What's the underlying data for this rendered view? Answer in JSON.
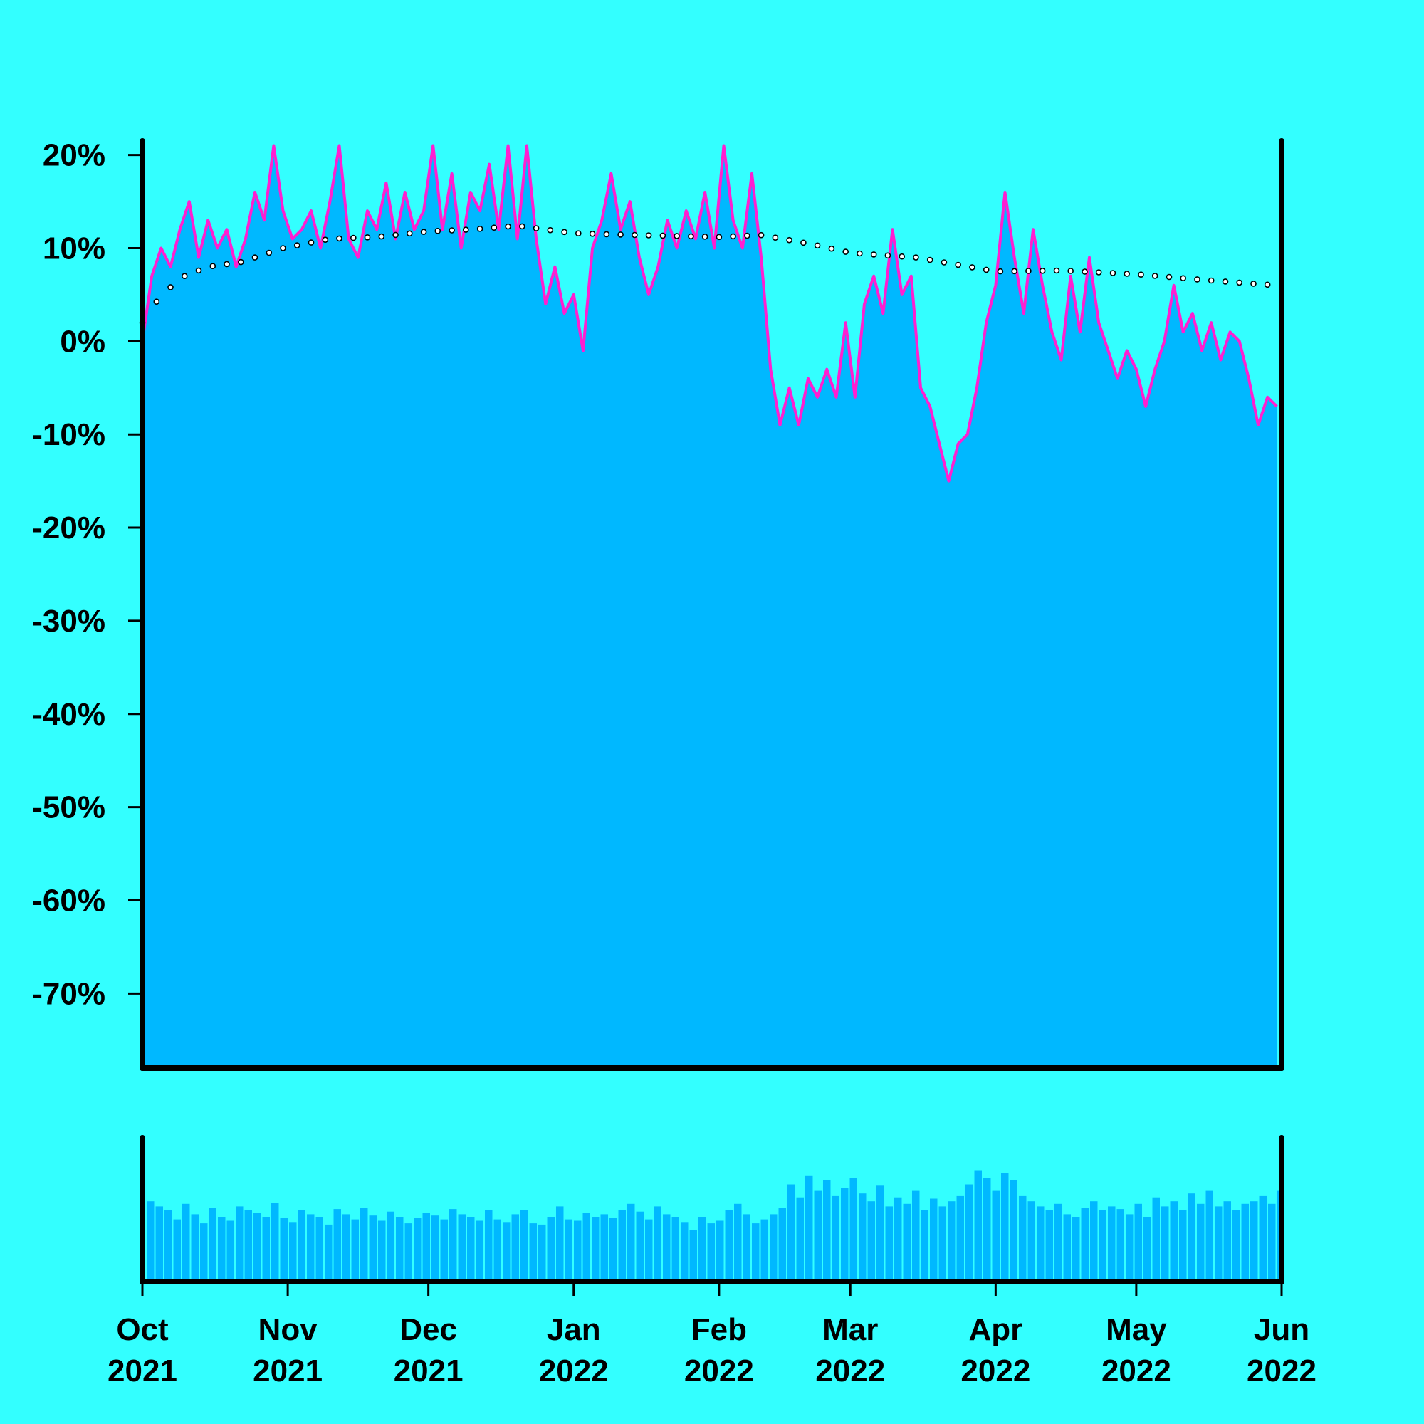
{
  "colors": {
    "background": "#33ffff",
    "area_fill": "#00b8ff",
    "line": "#ff1fd0",
    "trend_marker": "#000000",
    "axis": "#000000"
  },
  "chart_data": [
    {
      "type": "area",
      "title": "",
      "xlabel": "",
      "ylabel": "",
      "x_range": [
        "2021-10-01",
        "2022-06-01"
      ],
      "ylim": [
        -78,
        21.5
      ],
      "y_ticks": [
        {
          "value": 20,
          "label": "20%"
        },
        {
          "value": 10,
          "label": "10%"
        },
        {
          "value": 0,
          "label": "0%"
        },
        {
          "value": -10,
          "label": "-10%"
        },
        {
          "value": -20,
          "label": "-20%"
        },
        {
          "value": -30,
          "label": "-30%"
        },
        {
          "value": -40,
          "label": "-40%"
        },
        {
          "value": -50,
          "label": "-50%"
        },
        {
          "value": -60,
          "label": "-60%"
        },
        {
          "value": -70,
          "label": "-70%"
        }
      ],
      "x_ticks": [
        {
          "date": "2021-10-01",
          "label_top": "Oct",
          "label_bottom": "2021"
        },
        {
          "date": "2021-11-01",
          "label_top": "Nov",
          "label_bottom": "2021"
        },
        {
          "date": "2021-12-01",
          "label_top": "Dec",
          "label_bottom": "2021"
        },
        {
          "date": "2022-01-01",
          "label_top": "Jan",
          "label_bottom": "2022"
        },
        {
          "date": "2022-02-01",
          "label_top": "Feb",
          "label_bottom": "2022"
        },
        {
          "date": "2022-03-01",
          "label_top": "Mar",
          "label_bottom": "2022"
        },
        {
          "date": "2022-04-01",
          "label_top": "Apr",
          "label_bottom": "2022"
        },
        {
          "date": "2022-05-01",
          "label_top": "May",
          "label_bottom": "2022"
        },
        {
          "date": "2022-06-01",
          "label_top": "Jun",
          "label_bottom": "2022"
        }
      ],
      "grid": false,
      "legend": "none",
      "series": [
        {
          "kind": "area-line",
          "points": [
            [
              "2021-10-01",
              0
            ],
            [
              "2021-10-03",
              7
            ],
            [
              "2021-10-05",
              10
            ],
            [
              "2021-10-07",
              8
            ],
            [
              "2021-10-09",
              12
            ],
            [
              "2021-10-11",
              15
            ],
            [
              "2021-10-13",
              9
            ],
            [
              "2021-10-15",
              13
            ],
            [
              "2021-10-17",
              10
            ],
            [
              "2021-10-19",
              12
            ],
            [
              "2021-10-21",
              8
            ],
            [
              "2021-10-23",
              11
            ],
            [
              "2021-10-25",
              16
            ],
            [
              "2021-10-27",
              13
            ],
            [
              "2021-10-29",
              21
            ],
            [
              "2021-10-31",
              14
            ],
            [
              "2021-11-02",
              11
            ],
            [
              "2021-11-04",
              12
            ],
            [
              "2021-11-06",
              14
            ],
            [
              "2021-11-08",
              10
            ],
            [
              "2021-11-10",
              15
            ],
            [
              "2021-11-12",
              21
            ],
            [
              "2021-11-14",
              11
            ],
            [
              "2021-11-16",
              9
            ],
            [
              "2021-11-18",
              14
            ],
            [
              "2021-11-20",
              12
            ],
            [
              "2021-11-22",
              17
            ],
            [
              "2021-11-24",
              11
            ],
            [
              "2021-11-26",
              16
            ],
            [
              "2021-11-28",
              12
            ],
            [
              "2021-11-30",
              14
            ],
            [
              "2021-12-02",
              21
            ],
            [
              "2021-12-04",
              12
            ],
            [
              "2021-12-06",
              18
            ],
            [
              "2021-12-08",
              10
            ],
            [
              "2021-12-10",
              16
            ],
            [
              "2021-12-12",
              14
            ],
            [
              "2021-12-14",
              19
            ],
            [
              "2021-12-16",
              12
            ],
            [
              "2021-12-18",
              21
            ],
            [
              "2021-12-20",
              11
            ],
            [
              "2021-12-22",
              21
            ],
            [
              "2021-12-24",
              11
            ],
            [
              "2021-12-26",
              4
            ],
            [
              "2021-12-28",
              8
            ],
            [
              "2021-12-30",
              3
            ],
            [
              "2022-01-01",
              5
            ],
            [
              "2022-01-03",
              -1
            ],
            [
              "2022-01-05",
              10
            ],
            [
              "2022-01-07",
              13
            ],
            [
              "2022-01-09",
              18
            ],
            [
              "2022-01-11",
              12
            ],
            [
              "2022-01-13",
              15
            ],
            [
              "2022-01-15",
              9
            ],
            [
              "2022-01-17",
              5
            ],
            [
              "2022-01-19",
              8
            ],
            [
              "2022-01-21",
              13
            ],
            [
              "2022-01-23",
              10
            ],
            [
              "2022-01-25",
              14
            ],
            [
              "2022-01-27",
              11
            ],
            [
              "2022-01-29",
              16
            ],
            [
              "2022-01-31",
              10
            ],
            [
              "2022-02-02",
              21
            ],
            [
              "2022-02-04",
              13
            ],
            [
              "2022-02-06",
              10
            ],
            [
              "2022-02-08",
              18
            ],
            [
              "2022-02-10",
              9
            ],
            [
              "2022-02-12",
              -3
            ],
            [
              "2022-02-14",
              -9
            ],
            [
              "2022-02-16",
              -5
            ],
            [
              "2022-02-18",
              -9
            ],
            [
              "2022-02-20",
              -4
            ],
            [
              "2022-02-22",
              -6
            ],
            [
              "2022-02-24",
              -3
            ],
            [
              "2022-02-26",
              -6
            ],
            [
              "2022-02-28",
              2
            ],
            [
              "2022-03-02",
              -6
            ],
            [
              "2022-03-04",
              4
            ],
            [
              "2022-03-06",
              7
            ],
            [
              "2022-03-08",
              3
            ],
            [
              "2022-03-10",
              12
            ],
            [
              "2022-03-12",
              5
            ],
            [
              "2022-03-14",
              7
            ],
            [
              "2022-03-16",
              -5
            ],
            [
              "2022-03-18",
              -7
            ],
            [
              "2022-03-20",
              -11
            ],
            [
              "2022-03-22",
              -15
            ],
            [
              "2022-03-24",
              -11
            ],
            [
              "2022-03-26",
              -10
            ],
            [
              "2022-03-28",
              -5
            ],
            [
              "2022-03-30",
              2
            ],
            [
              "2022-04-01",
              6
            ],
            [
              "2022-04-03",
              16
            ],
            [
              "2022-04-05",
              9
            ],
            [
              "2022-04-07",
              3
            ],
            [
              "2022-04-09",
              12
            ],
            [
              "2022-04-11",
              6
            ],
            [
              "2022-04-13",
              1
            ],
            [
              "2022-04-15",
              -2
            ],
            [
              "2022-04-17",
              7
            ],
            [
              "2022-04-19",
              1
            ],
            [
              "2022-04-21",
              9
            ],
            [
              "2022-04-23",
              2
            ],
            [
              "2022-04-25",
              -1
            ],
            [
              "2022-04-27",
              -4
            ],
            [
              "2022-04-29",
              -1
            ],
            [
              "2022-05-01",
              -3
            ],
            [
              "2022-05-03",
              -7
            ],
            [
              "2022-05-05",
              -3
            ],
            [
              "2022-05-07",
              0
            ],
            [
              "2022-05-09",
              6
            ],
            [
              "2022-05-11",
              1
            ],
            [
              "2022-05-13",
              3
            ],
            [
              "2022-05-15",
              -1
            ],
            [
              "2022-05-17",
              2
            ],
            [
              "2022-05-19",
              -2
            ],
            [
              "2022-05-21",
              1
            ],
            [
              "2022-05-23",
              0
            ],
            [
              "2022-05-25",
              -4
            ],
            [
              "2022-05-27",
              -9
            ],
            [
              "2022-05-29",
              -6
            ],
            [
              "2022-05-31",
              -7
            ]
          ]
        },
        {
          "kind": "trend-dotted",
          "points": [
            [
              "2021-10-01",
              2
            ],
            [
              "2021-10-05",
              5
            ],
            [
              "2021-10-10",
              7
            ],
            [
              "2021-10-15",
              8
            ],
            [
              "2021-10-22",
              8.5
            ],
            [
              "2021-10-31",
              10
            ],
            [
              "2021-11-10",
              11
            ],
            [
              "2021-11-20",
              11.2
            ],
            [
              "2021-12-01",
              11.8
            ],
            [
              "2021-12-10",
              12
            ],
            [
              "2021-12-20",
              12.4
            ],
            [
              "2022-01-01",
              11.6
            ],
            [
              "2022-01-15",
              11.4
            ],
            [
              "2022-02-01",
              11.2
            ],
            [
              "2022-02-10",
              11.4
            ],
            [
              "2022-02-20",
              10.5
            ],
            [
              "2022-03-01",
              9.5
            ],
            [
              "2022-03-15",
              9
            ],
            [
              "2022-04-01",
              7.5
            ],
            [
              "2022-04-15",
              7.6
            ],
            [
              "2022-05-01",
              7.2
            ],
            [
              "2022-05-15",
              6.6
            ],
            [
              "2022-05-31",
              6
            ]
          ]
        }
      ]
    },
    {
      "type": "bar",
      "title": "",
      "xlabel": "",
      "ylabel": "",
      "x_range": [
        "2021-10-01",
        "2022-06-01"
      ],
      "ylim": [
        0,
        1
      ],
      "values": [
        0.62,
        0.58,
        0.55,
        0.48,
        0.6,
        0.52,
        0.45,
        0.57,
        0.5,
        0.47,
        0.58,
        0.55,
        0.53,
        0.5,
        0.61,
        0.49,
        0.46,
        0.55,
        0.52,
        0.5,
        0.44,
        0.56,
        0.52,
        0.48,
        0.57,
        0.51,
        0.47,
        0.54,
        0.5,
        0.45,
        0.49,
        0.53,
        0.51,
        0.48,
        0.56,
        0.52,
        0.5,
        0.47,
        0.55,
        0.48,
        0.46,
        0.52,
        0.55,
        0.45,
        0.44,
        0.5,
        0.58,
        0.48,
        0.47,
        0.53,
        0.5,
        0.52,
        0.49,
        0.55,
        0.6,
        0.54,
        0.48,
        0.58,
        0.52,
        0.5,
        0.46,
        0.4,
        0.5,
        0.45,
        0.47,
        0.55,
        0.6,
        0.52,
        0.45,
        0.48,
        0.52,
        0.57,
        0.75,
        0.65,
        0.82,
        0.7,
        0.78,
        0.66,
        0.72,
        0.8,
        0.68,
        0.62,
        0.74,
        0.58,
        0.65,
        0.6,
        0.7,
        0.55,
        0.64,
        0.58,
        0.62,
        0.66,
        0.75,
        0.86,
        0.8,
        0.7,
        0.84,
        0.78,
        0.66,
        0.62,
        0.58,
        0.55,
        0.6,
        0.52,
        0.5,
        0.57,
        0.62,
        0.55,
        0.58,
        0.56,
        0.52,
        0.6,
        0.5,
        0.65,
        0.58,
        0.62,
        0.55,
        0.68,
        0.6,
        0.7,
        0.58,
        0.62,
        0.55,
        0.6,
        0.62,
        0.66,
        0.6,
        0.7
      ]
    }
  ]
}
